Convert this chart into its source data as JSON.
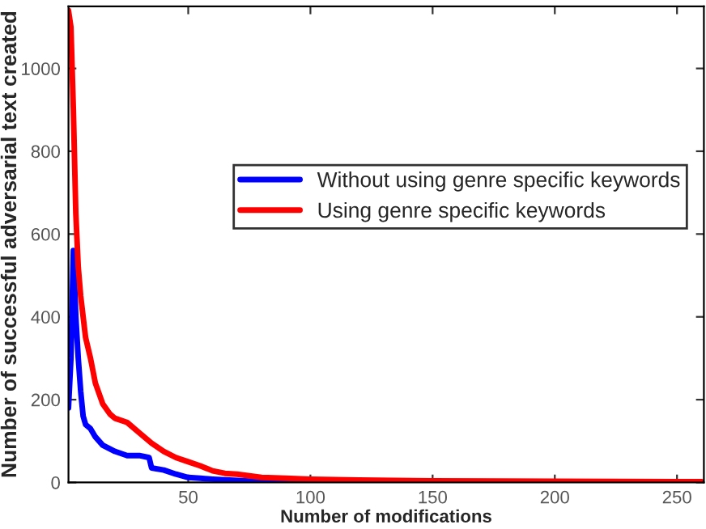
{
  "chart_data": {
    "type": "line",
    "xlabel": "Number of modifications",
    "ylabel": "Number of successful adversarial text created",
    "xlim": [
      1,
      261
    ],
    "ylim": [
      0,
      1150
    ],
    "xticks": [
      50,
      100,
      150,
      200,
      250
    ],
    "yticks": [
      0,
      200,
      400,
      600,
      800,
      1000
    ],
    "grid": false,
    "legend": "right",
    "line_style": "solid",
    "marker": "none",
    "series": [
      {
        "name": "Without using genre specific keywords",
        "color": "#0000ff",
        "x": [
          1,
          2,
          3,
          4,
          5,
          6,
          7,
          8,
          10,
          12,
          15,
          20,
          25,
          30,
          34,
          35,
          40,
          45,
          50,
          55,
          60,
          70,
          80,
          90,
          100,
          120
        ],
        "values": [
          180,
          300,
          560,
          400,
          300,
          220,
          160,
          140,
          130,
          110,
          90,
          75,
          65,
          65,
          60,
          35,
          30,
          20,
          12,
          10,
          8,
          5,
          2,
          1,
          0,
          0
        ]
      },
      {
        "name": "Using genre specific keywords",
        "color": "#ff0000",
        "x": [
          1,
          2,
          3,
          4,
          5,
          6,
          8,
          10,
          12,
          15,
          18,
          20,
          25,
          30,
          35,
          40,
          45,
          50,
          55,
          60,
          65,
          70,
          80,
          90,
          100,
          120,
          150,
          200,
          250,
          260
        ],
        "values": [
          1140,
          1100,
          900,
          650,
          520,
          450,
          350,
          300,
          240,
          190,
          165,
          155,
          145,
          120,
          95,
          75,
          60,
          50,
          40,
          28,
          22,
          20,
          12,
          10,
          8,
          6,
          4,
          3,
          2,
          2
        ]
      }
    ]
  }
}
